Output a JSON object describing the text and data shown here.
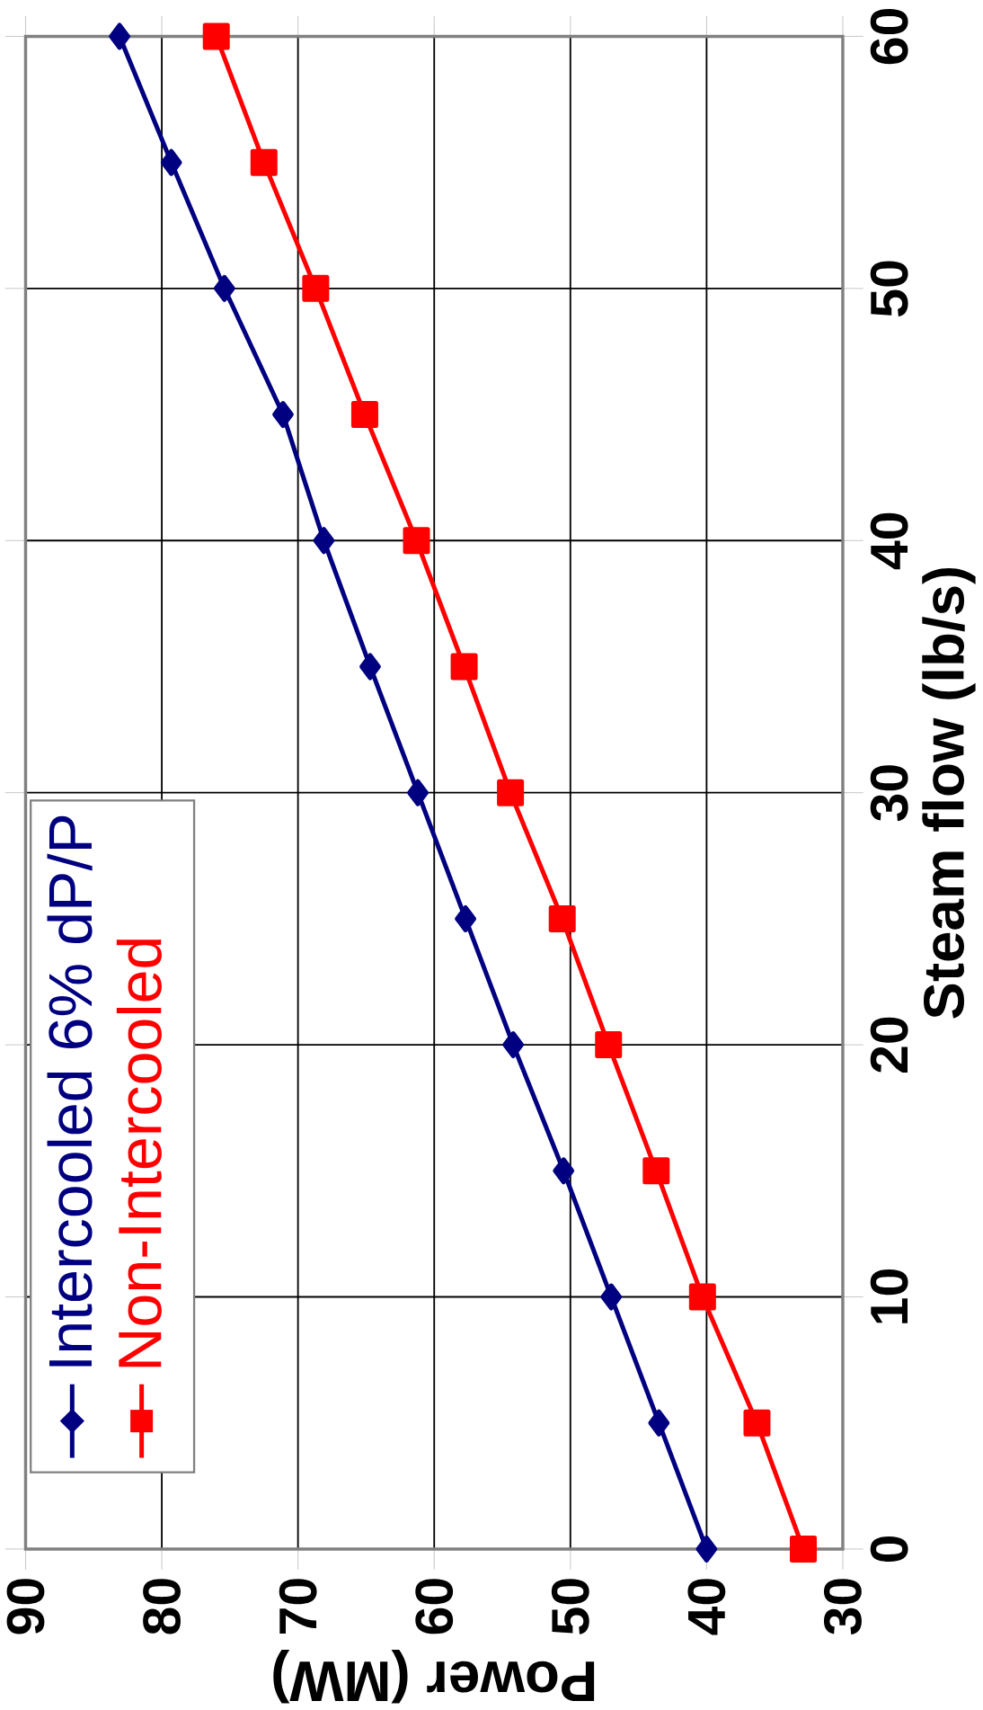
{
  "chart_data": {
    "type": "line",
    "xlabel": "Power (MW)",
    "ylabel": "Steam flow (lb/s)",
    "series": [
      {
        "name": "Intercooled 6% dP/P",
        "color": "#000080",
        "marker": "diamond",
        "x": [
          40.0,
          43.5,
          47.0,
          50.5,
          54.2,
          57.7,
          61.2,
          64.7,
          68.1,
          71.1,
          75.4,
          79.3,
          83.1
        ],
        "values": [
          0,
          5,
          10,
          15,
          20,
          25,
          30,
          35,
          40,
          45,
          50,
          55,
          60
        ]
      },
      {
        "name": "Non-Intercooled",
        "color": "#ff0000",
        "marker": "square",
        "x": [
          32.9,
          36.3,
          40.3,
          43.7,
          47.2,
          50.6,
          54.4,
          57.8,
          61.3,
          65.1,
          68.7,
          72.5,
          76.0
        ],
        "values": [
          0,
          5,
          10,
          15,
          20,
          25,
          30,
          35,
          40,
          45,
          50,
          55,
          60
        ]
      }
    ],
    "xlim": [
      90,
      30
    ],
    "xticks": [
      90,
      80,
      70,
      60,
      50,
      40,
      30
    ],
    "ylim": [
      0,
      60
    ],
    "yticks": [
      0,
      10,
      20,
      30,
      40,
      50,
      60
    ],
    "grid": true,
    "legend": "bottom left",
    "line_style": "solid"
  }
}
